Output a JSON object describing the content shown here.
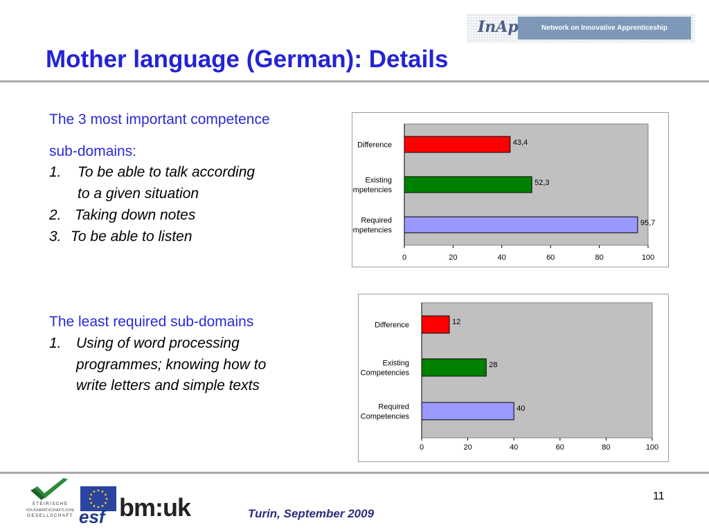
{
  "slide": {
    "title": "Mother language (German): Details",
    "network_banner": "Network on Innovative Apprenticeship",
    "inap_logo_text": "InAp",
    "slide_number": "11",
    "footer_date": "Turin, September 2009",
    "steirische_logo_text": [
      "STEIRISCHE",
      "VOLKSWIRTSCHAFTLICHE",
      "GESELLSCHAFT"
    ],
    "esf_logo_text": "esf",
    "bmuk_logo_text": "bm:uk"
  },
  "text_block_1": {
    "heading_line1": "The 3 most important competence",
    "heading_line2": "sub-domains:",
    "items": [
      {
        "num": "1.",
        "lines": [
          "To be able to talk according",
          "to a given situation"
        ]
      },
      {
        "num": "2.",
        "lines": [
          "Taking down notes"
        ]
      },
      {
        "num": "3.",
        "lines": [
          "To be able to listen"
        ]
      }
    ]
  },
  "text_block_2": {
    "heading": "The least required sub-domains",
    "items": [
      {
        "num": "1.",
        "lines": [
          "Using of word processing",
          "programmes; knowing how to",
          "write letters and simple texts"
        ]
      }
    ]
  },
  "colors": {
    "title": "#2323d6",
    "difference": "#ff0000",
    "existing": "#008000",
    "required": "#9999ff",
    "plot_bg": "#c0c0c0"
  },
  "chart_data": [
    {
      "type": "bar",
      "orientation": "horizontal",
      "categories": [
        "Difference",
        "Existing Competencies",
        "Required Competencies"
      ],
      "category_lines": [
        [
          "Difference"
        ],
        [
          "Existing",
          "Competencies"
        ],
        [
          "Required",
          "Competencies"
        ]
      ],
      "values": [
        43.4,
        52.3,
        95.7
      ],
      "value_labels": [
        "43,4",
        "52,3",
        "95,7"
      ],
      "colors": [
        "#ff0000",
        "#008000",
        "#9999ff"
      ],
      "xlim": [
        0,
        100
      ],
      "xticks": [
        0,
        20,
        40,
        60,
        80,
        100
      ],
      "grid": false,
      "legend": "none"
    },
    {
      "type": "bar",
      "orientation": "horizontal",
      "categories": [
        "Difference",
        "Existing Competencies",
        "Required Competencies"
      ],
      "category_lines": [
        [
          "Difference"
        ],
        [
          "Existing",
          "Competencies"
        ],
        [
          "Required",
          "Competencies"
        ]
      ],
      "values": [
        12,
        28,
        40
      ],
      "value_labels": [
        "12",
        "28",
        "40"
      ],
      "colors": [
        "#ff0000",
        "#008000",
        "#9999ff"
      ],
      "xlim": [
        0,
        100
      ],
      "xticks": [
        0,
        20,
        40,
        60,
        80,
        100
      ],
      "grid": false,
      "legend": "none"
    }
  ]
}
